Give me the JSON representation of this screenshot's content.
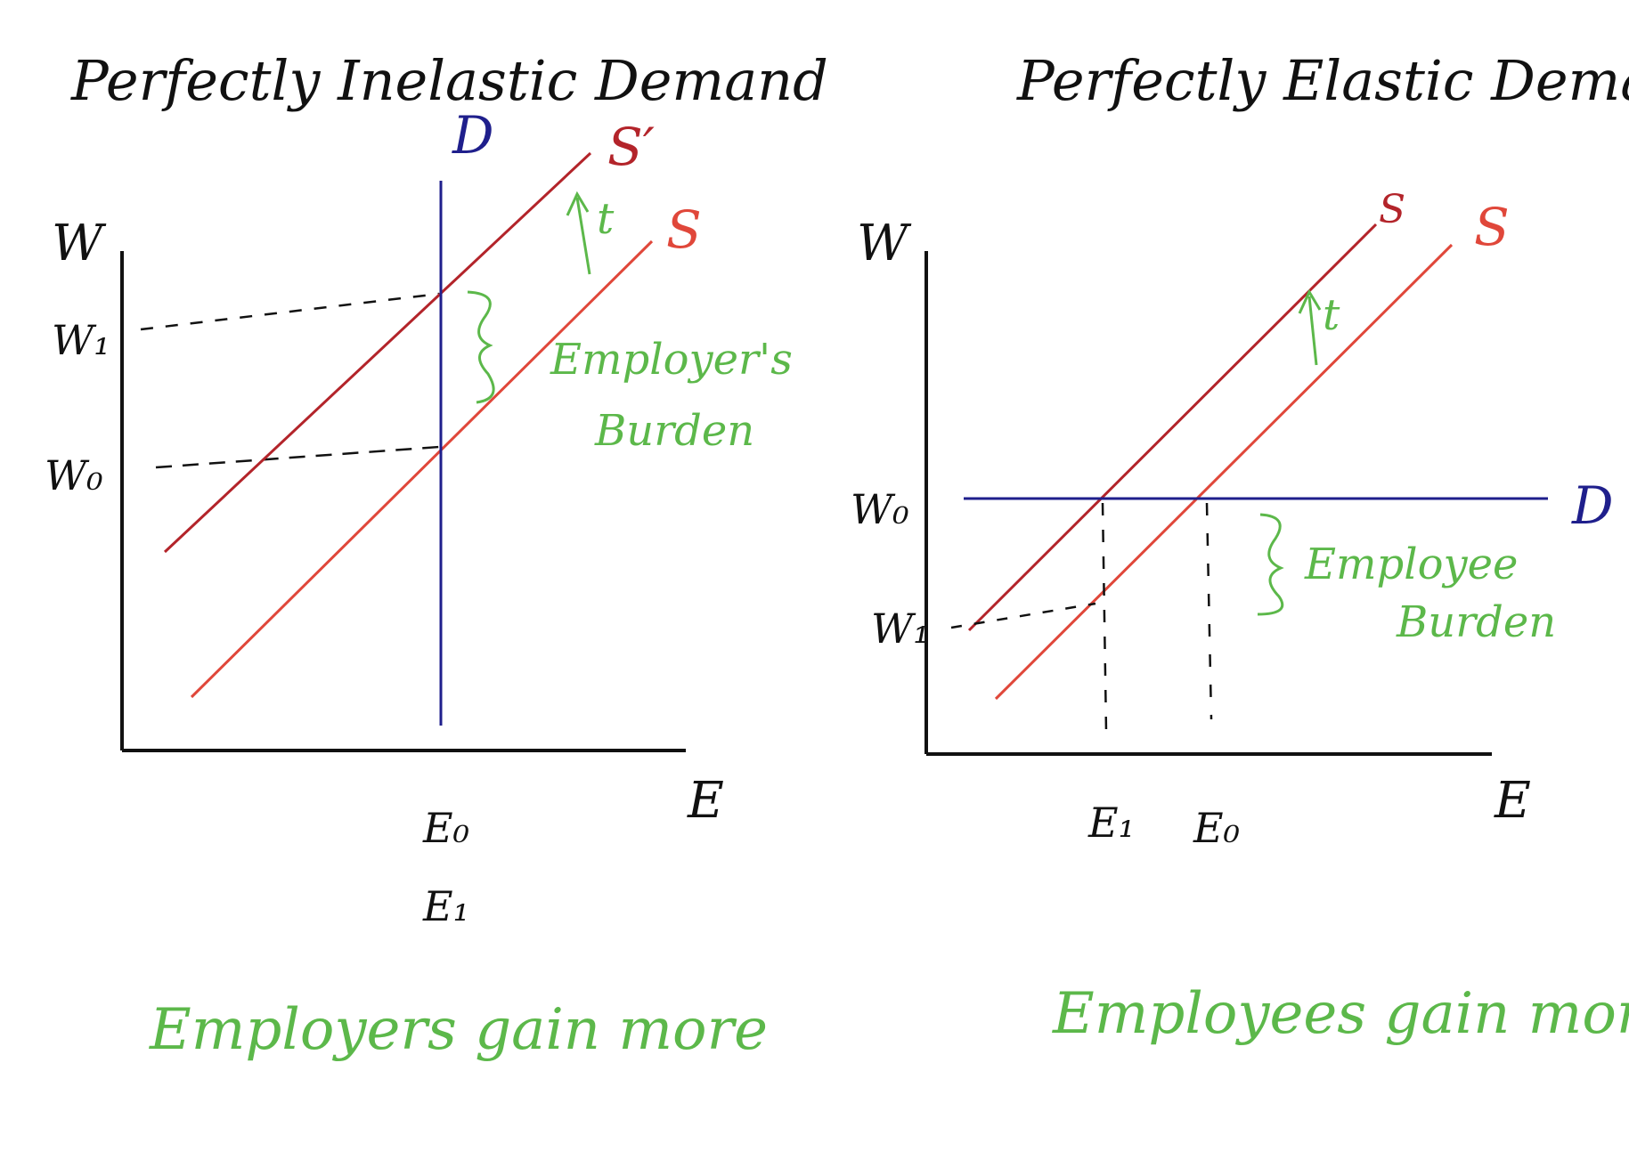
{
  "colors": {
    "ink": "#111111",
    "supply": "#e0473a",
    "supply_shifted": "#b3242a",
    "demand": "#1f1f8c",
    "annotation": "#5cb84a"
  },
  "left_panel": {
    "title": "Perfectly Inelastic Demand",
    "y_axis_label": "W",
    "x_axis_label": "E",
    "w1_label": "W₁",
    "w0_label": "W₀",
    "e0_label": "E₀",
    "e1_label": "E₁",
    "demand_label": "D",
    "supply_shifted_label": "S′",
    "supply_label": "S",
    "tax_label": "t",
    "burden_line1": "Employer's",
    "burden_line2": "Burden",
    "caption": "Employers gain more"
  },
  "right_panel": {
    "title": "Perfectly Elastic Demand",
    "y_axis_label": "W",
    "x_axis_label": "E",
    "w0_label": "W₀",
    "w1_label": "W₁",
    "e1_label": "E₁",
    "e0_label": "E₀",
    "demand_label": "D",
    "supply_shifted_label": "S",
    "supply_label": "S",
    "tax_label": "t",
    "burden_line1": "Employee",
    "burden_line2": "Burden",
    "caption": "Employees gain more"
  }
}
